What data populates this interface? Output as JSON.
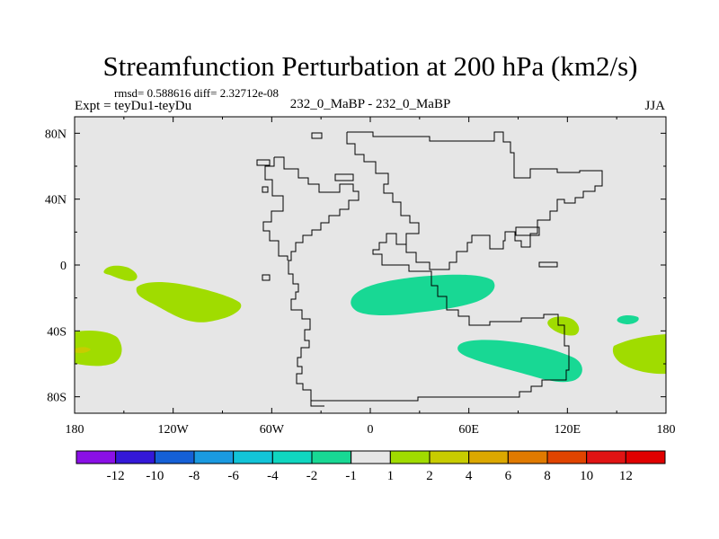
{
  "chart_data": {
    "type": "heatmap",
    "title": "Streamfunction Perturbation at 200 hPa (km2/s)",
    "stats": "rmsd= 0.588616 diff= 2.32712e-08",
    "left_label": "Expt = teyDu1-teyDu",
    "center_label": "232_0_MaBP - 232_0_MaBP",
    "right_label": "JJA",
    "x_ticks": [
      "180",
      "120W",
      "60W",
      "0",
      "60E",
      "120E",
      "180"
    ],
    "x_tick_values": [
      -180,
      -120,
      -60,
      0,
      60,
      120,
      180
    ],
    "y_ticks": [
      "80N",
      "40N",
      "0",
      "40S",
      "80S"
    ],
    "y_tick_values": [
      80,
      40,
      0,
      -40,
      -80
    ],
    "xlim": [
      -180,
      180
    ],
    "ylim": [
      -90,
      90
    ],
    "colorbar": {
      "labels": [
        "-12",
        "-10",
        "-8",
        "-6",
        "-4",
        "-2",
        "-1",
        "1",
        "2",
        "4",
        "6",
        "8",
        "10",
        "12"
      ],
      "colors": [
        "#8a10e6",
        "#3418d8",
        "#1560d6",
        "#1a9ae0",
        "#12c4d8",
        "#10d6c0",
        "#18d894",
        "#e6e6e6",
        "#a0dc00",
        "#c8cc00",
        "#dca800",
        "#e07a00",
        "#e04400",
        "#e01414",
        "#e00000"
      ]
    },
    "regions": [
      {
        "name": "s-pacific-positive-small",
        "level": "1 to 2",
        "color": "#a0dc00"
      },
      {
        "name": "s-pacific-positive-large",
        "level": "1 to 2",
        "color": "#a0dc00"
      },
      {
        "name": "southern-ocean-positive-west",
        "level": "1 to 2",
        "color": "#a0dc00"
      },
      {
        "name": "southern-ocean-peak",
        "level": "2 to 4",
        "color": "#c8cc00"
      },
      {
        "name": "indian-ocean-negative-north",
        "level": "-2 to -1",
        "color": "#18d894"
      },
      {
        "name": "indian-ocean-negative-south",
        "level": "-2 to -1",
        "color": "#18d894"
      },
      {
        "name": "australia-positive",
        "level": "1 to 2",
        "color": "#a0dc00"
      },
      {
        "name": "tasman-negative",
        "level": "-2 to -1",
        "color": "#18d894"
      },
      {
        "name": "s-pacific-east-positive",
        "level": "1 to 2",
        "color": "#a0dc00"
      }
    ]
  }
}
